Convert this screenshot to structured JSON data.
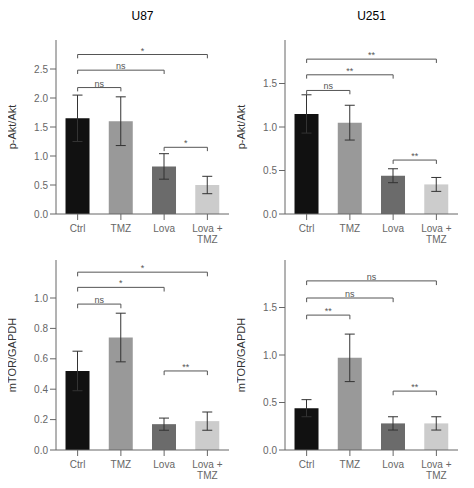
{
  "chart_data": [
    {
      "type": "bar",
      "title": "U87",
      "ylabel": "p-Akt/Akt",
      "categories": [
        "Ctrl",
        "TMZ",
        "Lova",
        "Lova +\nTMZ"
      ],
      "values": [
        1.65,
        1.6,
        0.82,
        0.5
      ],
      "errors": [
        0.4,
        0.42,
        0.22,
        0.15
      ],
      "colors": [
        "#111111",
        "#999999",
        "#6b6b6b",
        "#cccccc"
      ],
      "ylim": [
        0,
        3.0
      ],
      "yticks": [
        {
          "value": 0.0,
          "label": "0.0"
        },
        0.5,
        {
          "value": 1.0,
          "label": "1.0"
        },
        1.5,
        {
          "value": 2.0,
          "label": "2.0"
        },
        2.5
      ],
      "annotations": [
        {
          "x1": "Ctrl",
          "x2": "TMZ",
          "y": 2.18,
          "label": "ns"
        },
        {
          "x1": "Ctrl",
          "x2": "Lova",
          "y": 2.48,
          "label": "ns"
        },
        {
          "x1": "Ctrl",
          "x2": "Lova +\nTMZ",
          "y": 2.75,
          "label": "*"
        },
        {
          "x1": "Lova",
          "x2": "Lova +\nTMZ",
          "y": 1.15,
          "label": "*"
        }
      ]
    },
    {
      "type": "bar",
      "title": "U251",
      "ylabel": "p-Akt/Akt",
      "categories": [
        "Ctrl",
        "TMZ",
        "Lova",
        "Lova +\nTMZ"
      ],
      "values": [
        1.15,
        1.05,
        0.44,
        0.34
      ],
      "errors": [
        0.22,
        0.2,
        0.08,
        0.08
      ],
      "colors": [
        "#111111",
        "#999999",
        "#6b6b6b",
        "#cccccc"
      ],
      "ylim": [
        0,
        2.0
      ],
      "yticks": [
        {
          "value": 0.0,
          "label": "0.0"
        },
        0.5,
        {
          "value": 1.0,
          "label": "1.0"
        },
        1.5
      ],
      "annotations": [
        {
          "x1": "Ctrl",
          "x2": "TMZ",
          "y": 1.42,
          "label": "ns"
        },
        {
          "x1": "Ctrl",
          "x2": "Lova",
          "y": 1.6,
          "label": "**"
        },
        {
          "x1": "Ctrl",
          "x2": "Lova +\nTMZ",
          "y": 1.78,
          "label": "**"
        },
        {
          "x1": "Lova",
          "x2": "Lova +\nTMZ",
          "y": 0.62,
          "label": "**"
        }
      ]
    },
    {
      "type": "bar",
      "ylabel": "mTOR/GAPDH",
      "categories": [
        "Ctrl",
        "TMZ",
        "Lova",
        "Lova +\nTMZ"
      ],
      "values": [
        0.52,
        0.74,
        0.17,
        0.19
      ],
      "errors": [
        0.13,
        0.16,
        0.04,
        0.06
      ],
      "colors": [
        "#111111",
        "#999999",
        "#6b6b6b",
        "#cccccc"
      ],
      "ylim": [
        0,
        1.25
      ],
      "yticks": [
        {
          "value": 0.0,
          "label": "0.0"
        },
        0.2,
        0.4,
        0.6,
        0.8,
        {
          "value": 1.0,
          "label": "1.0"
        }
      ],
      "annotations": [
        {
          "x1": "Ctrl",
          "x2": "TMZ",
          "y": 0.96,
          "label": "ns"
        },
        {
          "x1": "Ctrl",
          "x2": "Lova",
          "y": 1.07,
          "label": "*"
        },
        {
          "x1": "Ctrl",
          "x2": "Lova +\nTMZ",
          "y": 1.17,
          "label": "*"
        },
        {
          "x1": "Lova",
          "x2": "Lova +\nTMZ",
          "y": 0.52,
          "label": "**"
        }
      ]
    },
    {
      "type": "bar",
      "ylabel": "mTOR/GAPDH",
      "categories": [
        "Ctrl",
        "TMZ",
        "Lova",
        "Lova +\nTMZ"
      ],
      "values": [
        0.44,
        0.97,
        0.28,
        0.28
      ],
      "errors": [
        0.09,
        0.25,
        0.07,
        0.07
      ],
      "colors": [
        "#111111",
        "#999999",
        "#6b6b6b",
        "#cccccc"
      ],
      "ylim": [
        0,
        2.0
      ],
      "yticks": [
        {
          "value": 0.0,
          "label": "0.0"
        },
        0.5,
        {
          "value": 1.0,
          "label": "1.0"
        },
        1.5
      ],
      "annotations": [
        {
          "x1": "Ctrl",
          "x2": "TMZ",
          "y": 1.42,
          "label": "**"
        },
        {
          "x1": "Ctrl",
          "x2": "Lova",
          "y": 1.6,
          "label": "ns"
        },
        {
          "x1": "Ctrl",
          "x2": "Lova +\nTMZ",
          "y": 1.78,
          "label": "ns"
        },
        {
          "x1": "Lova",
          "x2": "Lova +\nTMZ",
          "y": 0.62,
          "label": "**"
        }
      ]
    }
  ]
}
